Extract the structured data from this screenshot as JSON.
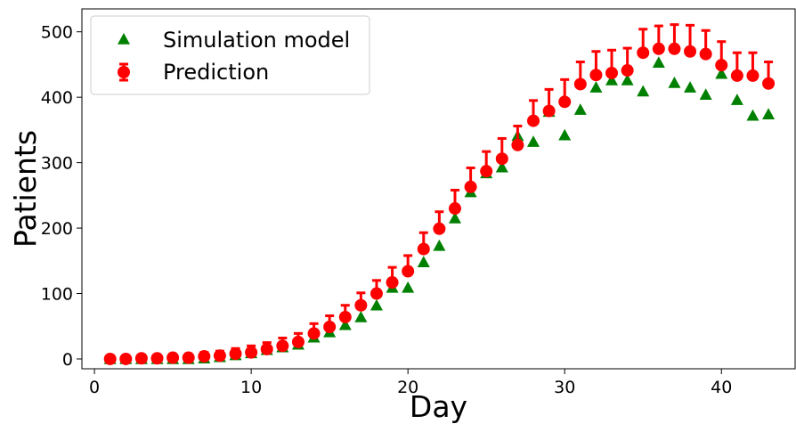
{
  "chart_data": {
    "type": "scatter",
    "xlabel": "Day",
    "ylabel": "Patients",
    "xlim": [
      -0.8,
      44.7
    ],
    "ylim": [
      -15,
      535
    ],
    "xticks": [
      0,
      10,
      20,
      30,
      40
    ],
    "yticks": [
      0,
      100,
      200,
      300,
      400,
      500
    ],
    "grid": false,
    "legend_position": "upper left",
    "series": [
      {
        "name": "Simulation model",
        "marker": "triangle",
        "color": "#008000",
        "x": [
          1,
          2,
          3,
          4,
          5,
          6,
          7,
          8,
          9,
          10,
          11,
          12,
          13,
          14,
          15,
          16,
          17,
          18,
          19,
          20,
          21,
          22,
          23,
          24,
          25,
          26,
          27,
          28,
          29,
          30,
          31,
          32,
          33,
          34,
          35,
          36,
          37,
          38,
          39,
          40,
          41,
          42,
          43
        ],
        "y": [
          0,
          0,
          0,
          0,
          0,
          0,
          1,
          3,
          6,
          9,
          14,
          18,
          22,
          33,
          41,
          52,
          64,
          82,
          109,
          109,
          148,
          173,
          215,
          255,
          284,
          293,
          341,
          332,
          378,
          342,
          381,
          415,
          426,
          426,
          409,
          453,
          422,
          415,
          404,
          436,
          396,
          372,
          374
        ]
      },
      {
        "name": "Prediction",
        "marker": "circle",
        "color": "#ff0000",
        "x": [
          1,
          2,
          3,
          4,
          5,
          6,
          7,
          8,
          9,
          10,
          11,
          12,
          13,
          14,
          15,
          16,
          17,
          18,
          19,
          20,
          21,
          22,
          23,
          24,
          25,
          26,
          27,
          28,
          29,
          30,
          31,
          32,
          33,
          34,
          35,
          36,
          37,
          38,
          39,
          40,
          41,
          42,
          43
        ],
        "y": [
          0,
          0,
          1,
          1,
          2,
          2,
          4,
          5,
          8,
          10,
          15,
          20,
          26,
          39,
          49,
          64,
          82,
          100,
          117,
          134,
          168,
          199,
          230,
          263,
          287,
          306,
          327,
          364,
          379,
          393,
          420,
          434,
          437,
          441,
          468,
          474,
          474,
          470,
          466,
          449,
          433,
          433,
          421
        ],
        "error_upper": [
          3,
          3,
          4,
          4,
          5,
          5,
          6,
          7,
          8,
          10,
          10,
          12,
          13,
          15,
          17,
          18,
          19,
          20,
          23,
          24,
          25,
          26,
          28,
          29,
          30,
          31,
          29,
          31,
          33,
          34,
          34,
          36,
          35,
          34,
          36,
          35,
          37,
          40,
          36,
          36,
          35,
          35,
          33
        ]
      }
    ]
  }
}
